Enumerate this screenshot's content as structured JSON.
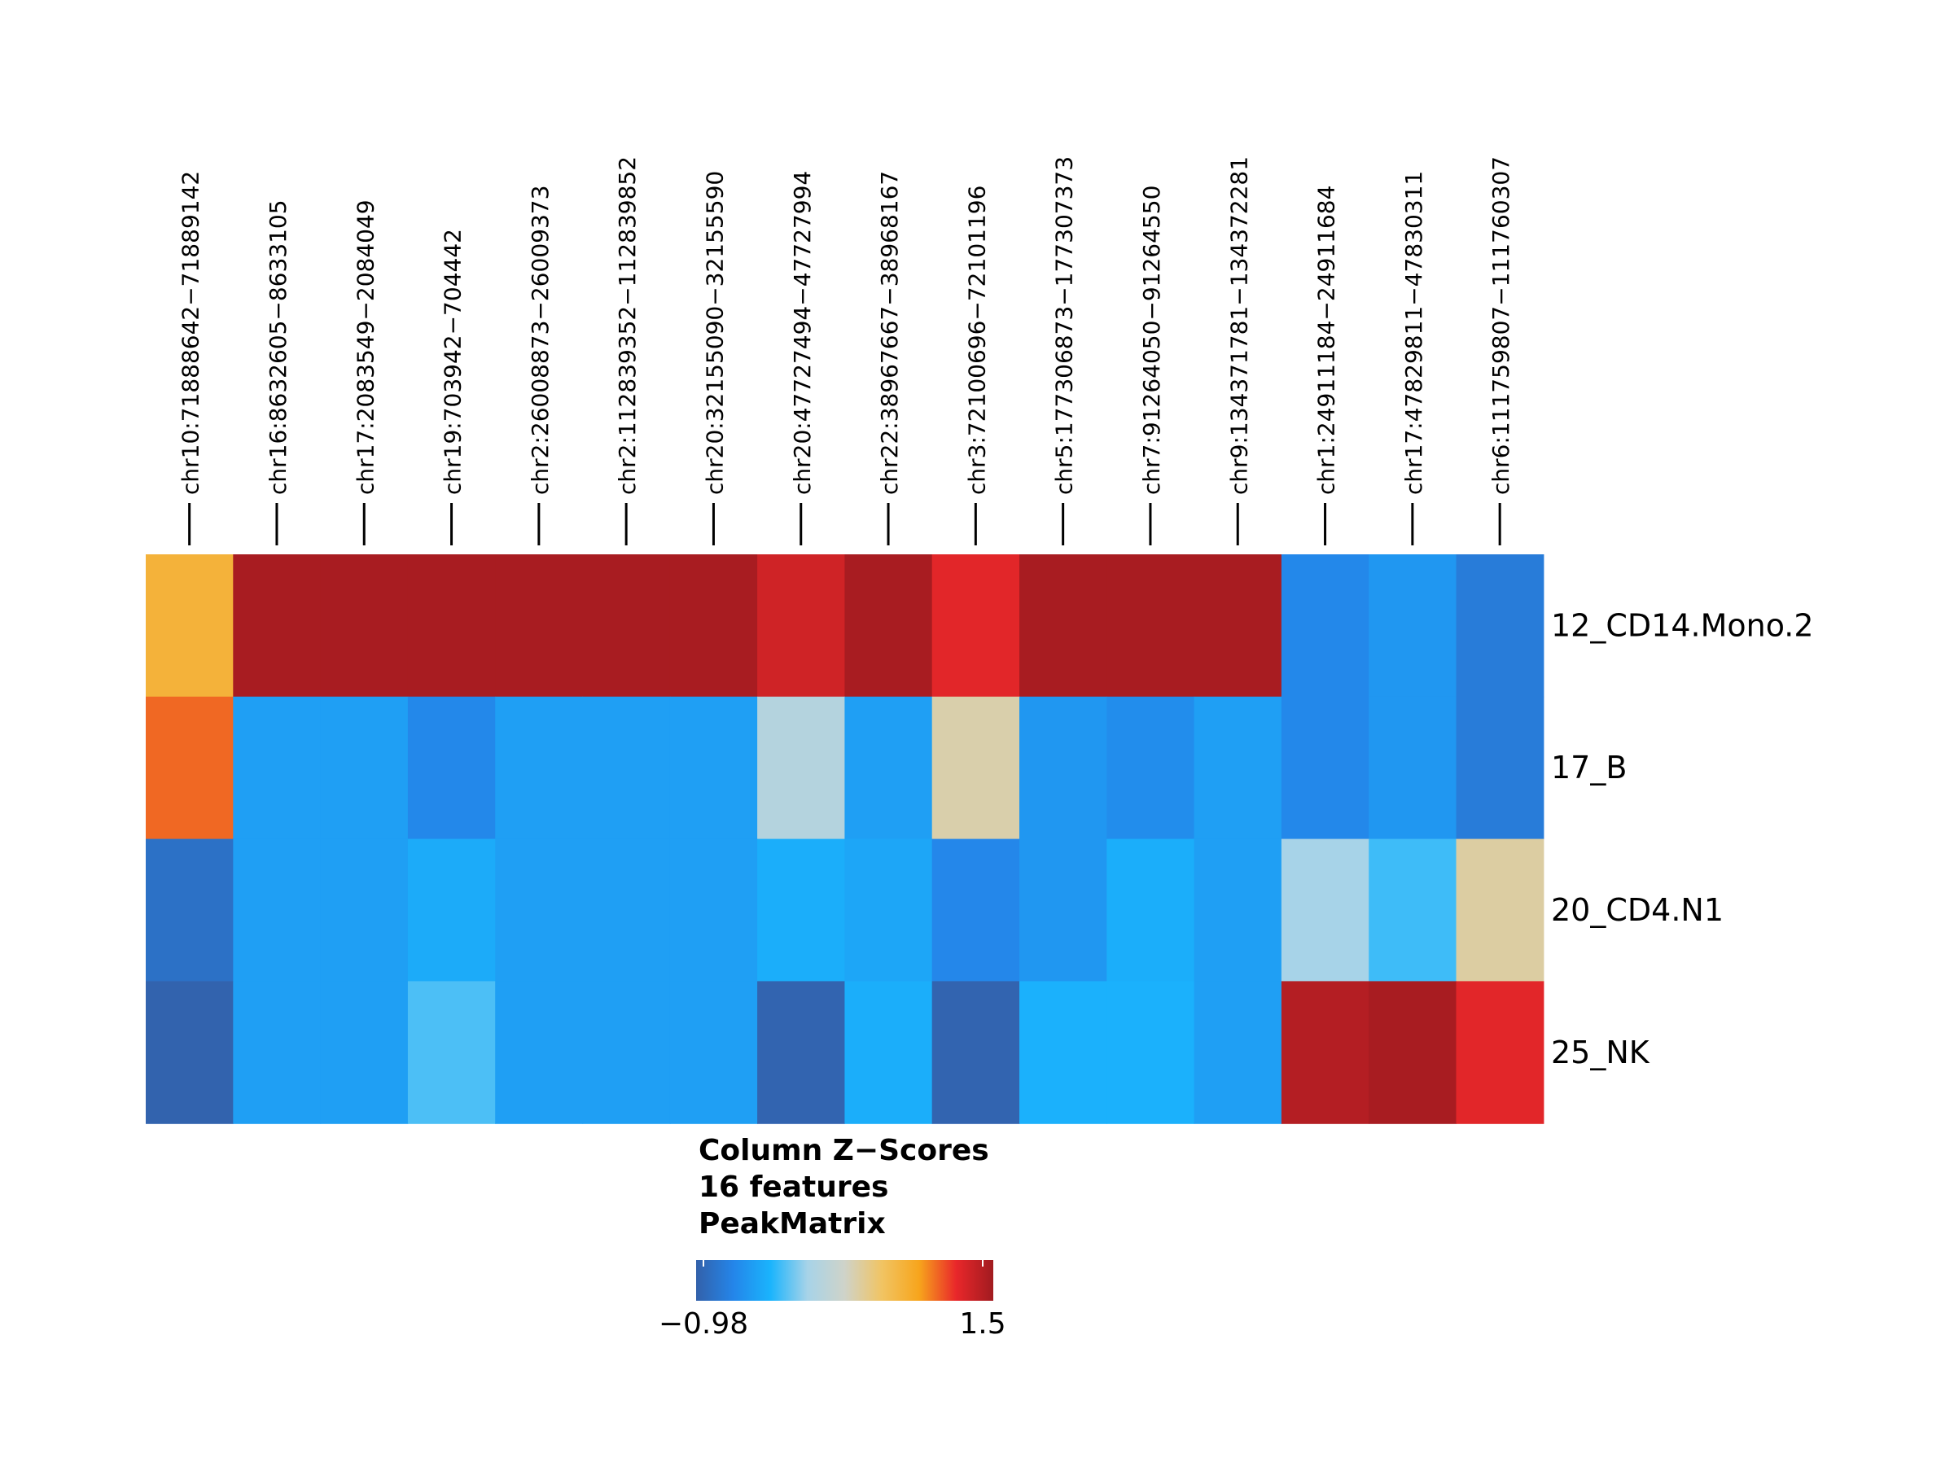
{
  "chart_data": {
    "type": "heatmap",
    "columns": [
      "chr10:71888642−71889142",
      "chr16:8632605−8633105",
      "chr17:2083549−2084049",
      "chr19:703942−704442",
      "chr2:26008873−26009373",
      "chr2:112839352−112839852",
      "chr20:32155090−32155590",
      "chr20:47727494−47727994",
      "chr22:38967667−38968167",
      "chr3:72100696−72101196",
      "chr5:177306873−177307373",
      "chr7:91264050−91264550",
      "chr9:134371781−134372281",
      "chr1:24911184−24911684",
      "chr17:47829811−47830311",
      "chr6:111759807−111760307"
    ],
    "rows": [
      "12_CD14.Mono.2",
      "17_B",
      "20_CD4.N1",
      "25_NK"
    ],
    "values": [
      [
        0.75,
        1.47,
        1.47,
        1.47,
        1.47,
        1.47,
        1.47,
        1.3,
        1.47,
        1.22,
        1.47,
        1.47,
        1.47,
        -0.65,
        -0.55,
        -0.75
      ],
      [
        1.03,
        -0.5,
        -0.5,
        -0.65,
        -0.5,
        -0.5,
        -0.5,
        0.05,
        -0.5,
        0.35,
        -0.55,
        -0.62,
        -0.5,
        -0.65,
        -0.55,
        -0.75
      ],
      [
        -0.84,
        -0.5,
        -0.5,
        -0.42,
        -0.5,
        -0.5,
        -0.5,
        -0.4,
        -0.45,
        -0.66,
        -0.55,
        -0.4,
        -0.5,
        -0.05,
        -0.28,
        0.38
      ],
      [
        -0.96,
        -0.5,
        -0.5,
        -0.25,
        -0.5,
        -0.5,
        -0.5,
        -0.95,
        -0.4,
        -0.95,
        -0.38,
        -0.38,
        -0.5,
        1.42,
        1.47,
        1.22
      ]
    ],
    "legend": {
      "title_lines": [
        "Column Z−Scores",
        "16 features",
        "PeakMatrix"
      ],
      "min_label": "−0.98",
      "max_label": "1.5",
      "min": -0.98,
      "max": 1.5,
      "stops": [
        "#3361aa",
        "#2485e9",
        "#1ab4fd",
        "#a7d3e8",
        "#cfd3c9",
        "#f1c463",
        "#f7a51c",
        "#e9272a",
        "#a11b20"
      ]
    }
  }
}
